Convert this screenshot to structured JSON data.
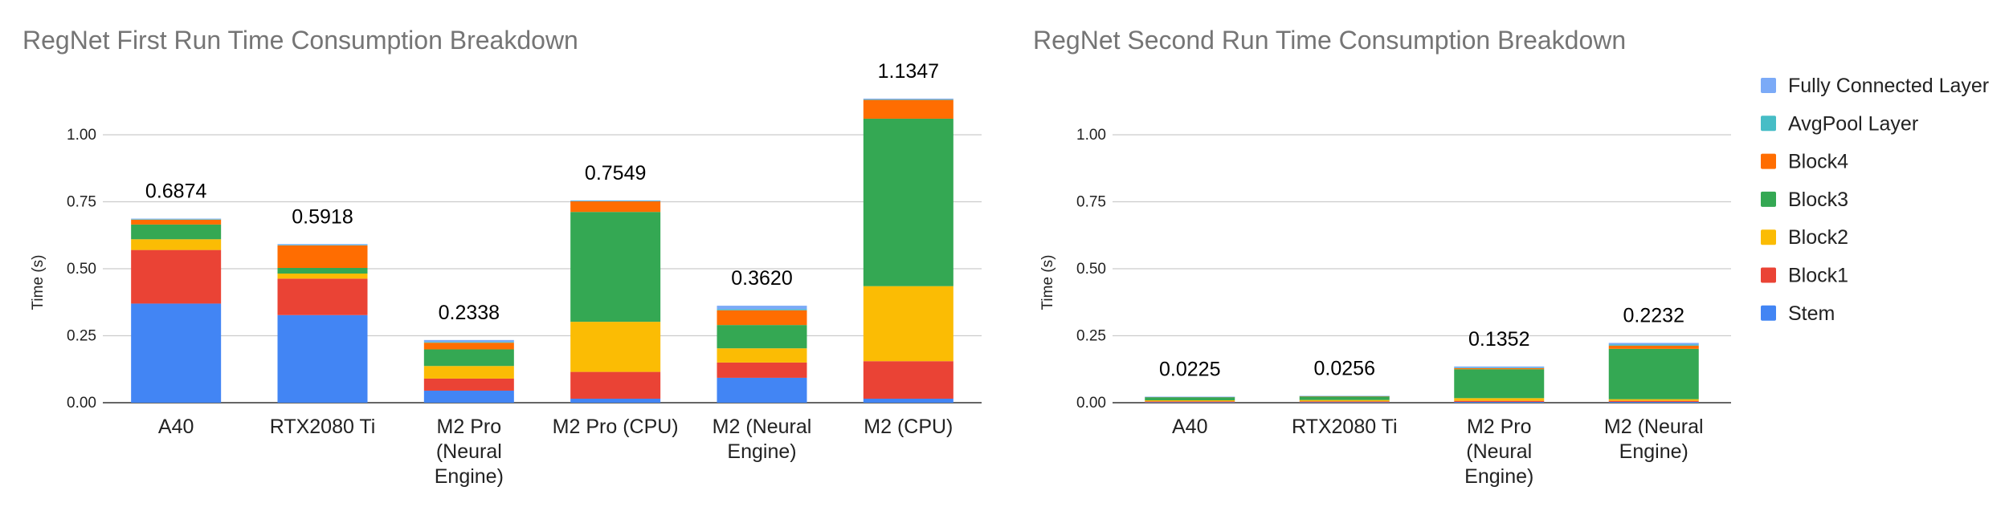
{
  "colors": {
    "Stem": "#4285f4",
    "Block1": "#ea4335",
    "Block2": "#fbbc04",
    "Block3": "#34a853",
    "Block4": "#ff6d01",
    "AvgPool Layer": "#46bdc6",
    "Fully Connected Layer": "#7baaf7"
  },
  "legend": {
    "items": [
      "Fully Connected Layer",
      "AvgPool Layer",
      "Block4",
      "Block3",
      "Block2",
      "Block1",
      "Stem"
    ],
    "position": "right"
  },
  "chart_data": [
    {
      "type": "bar",
      "stacked": true,
      "title": "RegNet First Run Time Consumption Breakdown",
      "xlabel": "",
      "ylabel": "Time (s)",
      "ylim": [
        0,
        1.15
      ],
      "yticks": [
        "0.00",
        "0.25",
        "0.50",
        "0.75",
        "1.00"
      ],
      "ytick_values": [
        0,
        0.25,
        0.5,
        0.75,
        1.0
      ],
      "grid": true,
      "categories": [
        [
          "A40"
        ],
        [
          "RTX2080 Ti"
        ],
        [
          "M2 Pro",
          "(Neural",
          "Engine)"
        ],
        [
          "M2 Pro (CPU)"
        ],
        [
          "M2 (Neural",
          "Engine)"
        ],
        [
          "M2 (CPU)"
        ]
      ],
      "totals": [
        "0.6874",
        "0.5918",
        "0.2338",
        "0.7549",
        "0.3620",
        "1.1347"
      ],
      "series": [
        {
          "name": "Stem",
          "values": [
            0.37,
            0.327,
            0.045,
            0.015,
            0.093,
            0.015
          ]
        },
        {
          "name": "Block1",
          "values": [
            0.2,
            0.136,
            0.045,
            0.1,
            0.057,
            0.14
          ]
        },
        {
          "name": "Block2",
          "values": [
            0.04,
            0.019,
            0.047,
            0.187,
            0.053,
            0.28
          ]
        },
        {
          "name": "Block3",
          "values": [
            0.055,
            0.021,
            0.062,
            0.41,
            0.087,
            0.625
          ]
        },
        {
          "name": "Block4",
          "values": [
            0.018,
            0.084,
            0.025,
            0.04,
            0.055,
            0.07
          ]
        },
        {
          "name": "AvgPool Layer",
          "values": [
            0.002,
            0.002,
            0.003,
            0.001,
            0.004,
            0.002
          ]
        },
        {
          "name": "Fully Connected Layer",
          "values": [
            0.002,
            0.003,
            0.007,
            0.002,
            0.013,
            0.003
          ]
        }
      ]
    },
    {
      "type": "bar",
      "stacked": true,
      "title": "RegNet Second Run Time Consumption Breakdown",
      "xlabel": "",
      "ylabel": "Time (s)",
      "ylim": [
        0,
        1.15
      ],
      "yticks": [
        "0.00",
        "0.25",
        "0.50",
        "0.75",
        "1.00"
      ],
      "ytick_values": [
        0,
        0.25,
        0.5,
        0.75,
        1.0
      ],
      "grid": true,
      "categories": [
        [
          "A40"
        ],
        [
          "RTX2080 Ti"
        ],
        [
          "M2 Pro",
          "(Neural",
          "Engine)"
        ],
        [
          "M2 (Neural",
          "Engine)"
        ]
      ],
      "totals": [
        "0.0225",
        "0.0256",
        "0.1352",
        "0.2232"
      ],
      "series": [
        {
          "name": "Stem",
          "values": [
            0.002,
            0.002,
            0.003,
            0.003
          ]
        },
        {
          "name": "Block1",
          "values": [
            0.003,
            0.003,
            0.004,
            0.004
          ]
        },
        {
          "name": "Block2",
          "values": [
            0.004,
            0.005,
            0.01,
            0.006
          ]
        },
        {
          "name": "Block3",
          "values": [
            0.011,
            0.013,
            0.108,
            0.188
          ]
        },
        {
          "name": "Block4",
          "values": [
            0.001,
            0.001,
            0.004,
            0.012
          ]
        },
        {
          "name": "AvgPool Layer",
          "values": [
            0.0005,
            0.001,
            0.002,
            0.004
          ]
        },
        {
          "name": "Fully Connected Layer",
          "values": [
            0.001,
            0.0006,
            0.0042,
            0.0062
          ]
        }
      ]
    }
  ]
}
